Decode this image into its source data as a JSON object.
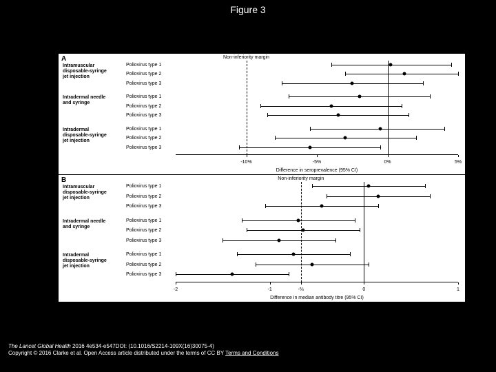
{
  "figure_title": "Figure 3",
  "panel_a": {
    "label": "A",
    "x_title": "Difference in seroprevalence (95% CI)",
    "margin_label": "Non-inferiority margin",
    "neg_limit": -15,
    "pos_limit": 5,
    "margin_at": -10,
    "zero_at": 0,
    "ticks": [
      {
        "pos": -10,
        "label": "-10%"
      },
      {
        "pos": -5,
        "label": "-5%"
      },
      {
        "pos": 0,
        "label": "0%"
      },
      {
        "pos": 5,
        "label": "5%"
      }
    ],
    "groups": [
      {
        "name": "Intramuscular disposable-syringe jet injection",
        "rows": [
          {
            "virus": "Poliovirus type 1",
            "lo": -4.0,
            "pt": 0.2,
            "hi": 4.5
          },
          {
            "virus": "Poliovirus type 2",
            "lo": -3.0,
            "pt": 1.2,
            "hi": 5.0
          },
          {
            "virus": "Poliovirus type 3",
            "lo": -7.5,
            "pt": -2.5,
            "hi": 2.5
          }
        ]
      },
      {
        "name": "Intradermal needle and syringe",
        "rows": [
          {
            "virus": "Poliovirus type 1",
            "lo": -7.0,
            "pt": -2.0,
            "hi": 3.0
          },
          {
            "virus": "Poliovirus type 2",
            "lo": -9.0,
            "pt": -4.0,
            "hi": 1.0
          },
          {
            "virus": "Poliovirus type 3",
            "lo": -8.5,
            "pt": -3.5,
            "hi": 1.5
          }
        ]
      },
      {
        "name": "Intradermal disposable-syringe jet injection",
        "rows": [
          {
            "virus": "Poliovirus type 1",
            "lo": -5.5,
            "pt": -0.5,
            "hi": 4.0
          },
          {
            "virus": "Poliovirus type 2",
            "lo": -8.0,
            "pt": -3.0,
            "hi": 2.0
          },
          {
            "virus": "Poliovirus type 3",
            "lo": -10.5,
            "pt": -5.5,
            "hi": -0.5
          }
        ]
      }
    ]
  },
  "panel_b": {
    "label": "B",
    "x_title": "Difference in median antibody titre (95% CI)",
    "margin_label": "Non-inferiority margin",
    "neg_limit": -2,
    "pos_limit": 1,
    "margin_at": -0.67,
    "zero_at": 0,
    "ticks": [
      {
        "pos": -2,
        "label": "-2"
      },
      {
        "pos": -1,
        "label": "-1"
      },
      {
        "pos": -0.67,
        "label": "-⅔"
      },
      {
        "pos": 0,
        "label": "0"
      },
      {
        "pos": 1,
        "label": "1"
      }
    ],
    "groups": [
      {
        "name": "Intramuscular disposable-syringe jet injection",
        "rows": [
          {
            "virus": "Poliovirus type 1",
            "lo": -0.55,
            "pt": 0.05,
            "hi": 0.65
          },
          {
            "virus": "Poliovirus type 2",
            "lo": -0.4,
            "pt": 0.15,
            "hi": 0.7
          },
          {
            "virus": "Poliovirus type 3",
            "lo": -1.05,
            "pt": -0.45,
            "hi": 0.15
          }
        ]
      },
      {
        "name": "Intradermal needle and syringe",
        "rows": [
          {
            "virus": "Poliovirus type 1",
            "lo": -1.3,
            "pt": -0.7,
            "hi": -0.1
          },
          {
            "virus": "Poliovirus type 2",
            "lo": -1.25,
            "pt": -0.65,
            "hi": -0.05
          },
          {
            "virus": "Poliovirus type 3",
            "lo": -1.5,
            "pt": -0.9,
            "hi": -0.3
          }
        ]
      },
      {
        "name": "Intradermal disposable-syringe jet injection",
        "rows": [
          {
            "virus": "Poliovirus type 1",
            "lo": -1.35,
            "pt": -0.75,
            "hi": -0.15
          },
          {
            "virus": "Poliovirus type 2",
            "lo": -1.15,
            "pt": -0.55,
            "hi": 0.05
          },
          {
            "virus": "Poliovirus type 3",
            "lo": -2.0,
            "pt": -1.4,
            "hi": -0.8
          }
        ]
      }
    ]
  },
  "citation": {
    "journal": "The Lancet Global Health",
    "ref": " 2016 4e534-e547DOI: (10.1016/S2214-109X(16)30075-4)",
    "copyright": "Copyright © 2016 Clarke et al. Open Access article distributed under the terms of CC BY ",
    "terms": "Terms and Conditions"
  }
}
